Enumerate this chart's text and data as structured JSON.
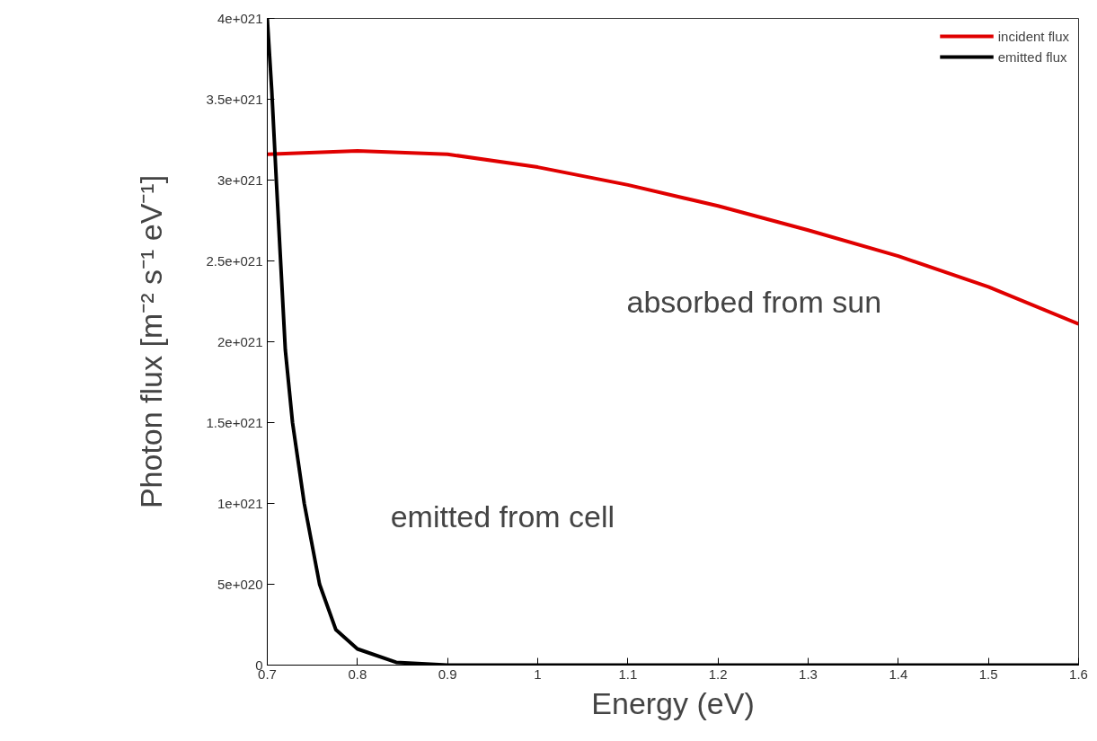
{
  "chart_data": {
    "type": "line",
    "xlabel": "Energy (eV)",
    "ylabel": "Photon flux [m⁻² s⁻¹ eV⁻¹]",
    "series": [
      {
        "name": "incident flux",
        "color": "#e00000",
        "x": [
          0.7,
          0.8,
          0.9,
          1.0,
          1.1,
          1.2,
          1.3,
          1.4,
          1.5,
          1.6
        ],
        "values": [
          3.16e+21,
          3.18e+21,
          3.16e+21,
          3.08e+21,
          2.97e+21,
          2.84e+21,
          2.69e+21,
          2.53e+21,
          2.34e+21,
          2.11e+21
        ]
      },
      {
        "name": "emitted flux",
        "color": "#000000",
        "x": [
          0.7,
          0.705,
          0.71,
          0.72,
          0.728,
          0.741,
          0.758,
          0.776,
          0.8,
          0.843,
          0.9,
          1.0,
          1.2,
          1.4,
          1.6
        ],
        "values": [
          4e+21,
          3.55e+21,
          3e+21,
          1.95e+21,
          1.5e+21,
          1e+21,
          5e+20,
          2.2e+20,
          1e+20,
          1.7e+19,
          0,
          0,
          0,
          0,
          0
        ]
      }
    ],
    "xlim": [
      0.7,
      1.6
    ],
    "ylim": [
      0,
      4e+21
    ],
    "xticks": [
      0.7,
      0.8,
      0.9,
      1,
      1.1,
      1.2,
      1.3,
      1.4,
      1.5,
      1.6
    ],
    "yticks": [
      0,
      {
        "value": 5e+20,
        "label": "5e+020"
      },
      {
        "value": 1e+21,
        "label": "1e+021"
      },
      {
        "value": 1.5e+21,
        "label": "1.5e+021"
      },
      {
        "value": 2e+21,
        "label": "2e+021"
      },
      {
        "value": 2.5e+21,
        "label": "2.5e+021"
      },
      {
        "value": 3e+21,
        "label": "3e+021"
      },
      {
        "value": 3.5e+21,
        "label": "3.5e+021"
      },
      {
        "value": 4e+21,
        "label": "4e+021"
      }
    ],
    "annotations": [
      "absorbed from sun",
      "emitted from cell"
    ],
    "legend": "top right",
    "grid": false,
    "line_style": "solid",
    "marker": "none"
  }
}
